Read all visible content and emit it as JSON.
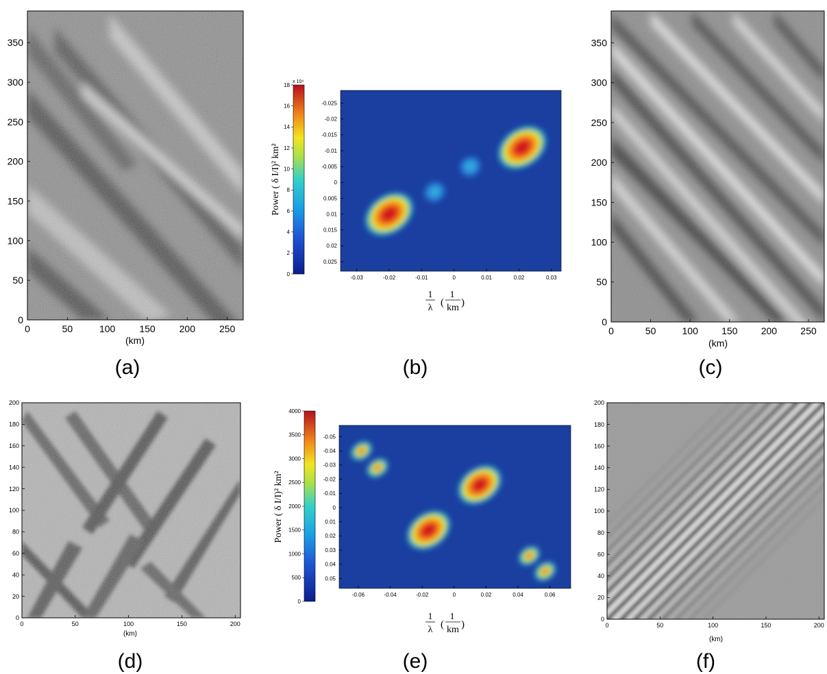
{
  "colors": {
    "heat_background": "#1a3fa0",
    "heat_low": "#2a6fd6",
    "heat_mid": "#33c1d9",
    "heat_yellow": "#f2e51f",
    "heat_orange": "#f28a1a",
    "heat_max": "#c8101c"
  },
  "panels": {
    "a": {
      "label": "(a)",
      "xunit": "(km)"
    },
    "b": {
      "label": "(b)"
    },
    "c": {
      "label": "(c)",
      "xunit": "(km)"
    },
    "d": {
      "label": "(d)",
      "xunit": "(km)"
    },
    "e": {
      "label": "(e)"
    },
    "f": {
      "label": "(f)",
      "xunit": "(km)"
    }
  },
  "spectra": {
    "power_label": "Power",
    "power_units": "( δ I/I)² km²",
    "freq_num": "1",
    "freq_den": "λ",
    "unit_num": "1",
    "unit_den": "km",
    "unit_open": "(",
    "unit_close": ")",
    "b_colorbar_exponent": "x 10⁴"
  },
  "chart_data": [
    {
      "id": "a",
      "type": "heatmap",
      "title": "",
      "xlabel": "(km)",
      "ylabel": "",
      "xlim": [
        0,
        270
      ],
      "ylim": [
        390,
        0
      ],
      "xticks": [
        0,
        50,
        100,
        150,
        200,
        250
      ],
      "yticks": [
        0,
        50,
        100,
        150,
        200,
        250,
        300,
        350
      ],
      "description_values": "grayscale intensity image with diagonal wave bands"
    },
    {
      "id": "b",
      "type": "heatmap",
      "xlabel": "1/λ (1/km)",
      "ylabel": "",
      "xlim": [
        -0.035,
        0.033
      ],
      "ylim": [
        -0.029,
        0.028
      ],
      "xticks": [
        -0.03,
        -0.02,
        -0.01,
        0,
        0.01,
        0.02,
        0.03
      ],
      "yticks": [
        -0.025,
        -0.02,
        -0.015,
        -0.01,
        -0.005,
        0,
        0.005,
        0.01,
        0.015,
        0.02,
        0.025
      ],
      "ytick_labels": [
        "-0.025",
        "-0.02",
        "-0.015",
        "-0.01",
        "-0.005",
        "0",
        "0.005",
        "0.01",
        "0.015",
        "0.02",
        "0.025"
      ],
      "colorbar": {
        "label": "Power ( δ I/I)² km²",
        "range": [
          0,
          18
        ],
        "ticks": [
          0,
          2,
          4,
          6,
          8,
          10,
          12,
          14,
          16,
          18
        ],
        "exponent": "x 10⁴"
      },
      "peaks": [
        {
          "x": -0.02,
          "y": 0.01,
          "value": 18
        },
        {
          "x": 0.021,
          "y": -0.011,
          "value": 18
        },
        {
          "x": -0.006,
          "y": 0.003,
          "value": 4
        },
        {
          "x": 0.005,
          "y": -0.005,
          "value": 4
        }
      ]
    },
    {
      "id": "c",
      "type": "heatmap",
      "xlabel": "(km)",
      "ylabel": "",
      "xlim": [
        0,
        270
      ],
      "ylim": [
        390,
        0
      ],
      "xticks": [
        0,
        50,
        100,
        150,
        200,
        250
      ],
      "yticks": [
        0,
        50,
        100,
        150,
        200,
        250,
        300,
        350
      ]
    },
    {
      "id": "d",
      "type": "heatmap",
      "xlabel": "(km)",
      "ylabel": "",
      "xlim": [
        0,
        205
      ],
      "ylim": [
        200,
        0
      ],
      "xticks": [
        0,
        50,
        100,
        150,
        200
      ],
      "yticks": [
        0,
        20,
        40,
        60,
        80,
        100,
        120,
        140,
        160,
        180,
        200
      ]
    },
    {
      "id": "e",
      "type": "heatmap",
      "xlabel": "1/λ (1/km)",
      "ylabel": "",
      "xlim": [
        -0.072,
        0.073
      ],
      "ylim": [
        -0.058,
        0.057
      ],
      "xticks": [
        -0.06,
        -0.04,
        -0.02,
        0,
        0.02,
        0.04,
        0.06
      ],
      "yticks": [
        -0.05,
        -0.04,
        -0.03,
        -0.02,
        -0.01,
        0,
        0.01,
        0.02,
        0.03,
        0.04,
        0.05
      ],
      "ytick_labels": [
        "-0.05",
        "-0.04",
        "-0.03",
        "-0.02",
        "-0.01",
        "0",
        "0.01",
        "0.02",
        "0.03",
        "0.04",
        "0.05"
      ],
      "colorbar": {
        "label": "Power ( δ I/I)² km²",
        "range": [
          0,
          4000
        ],
        "ticks": [
          0,
          500,
          1000,
          1500,
          2000,
          2500,
          3000,
          3500,
          4000
        ]
      },
      "peaks": [
        {
          "x": -0.016,
          "y": 0.016,
          "value": 4000
        },
        {
          "x": 0.016,
          "y": -0.016,
          "value": 4000
        },
        {
          "x": -0.058,
          "y": -0.04,
          "value": 2800
        },
        {
          "x": -0.048,
          "y": -0.028,
          "value": 3300
        },
        {
          "x": 0.047,
          "y": 0.034,
          "value": 3300
        },
        {
          "x": 0.057,
          "y": 0.045,
          "value": 2800
        }
      ]
    },
    {
      "id": "f",
      "type": "heatmap",
      "xlabel": "(km)",
      "ylabel": "",
      "xlim": [
        0,
        205
      ],
      "ylim": [
        200,
        0
      ],
      "xticks": [
        0,
        50,
        100,
        150,
        200
      ],
      "yticks": [
        0,
        20,
        40,
        60,
        80,
        100,
        120,
        140,
        160,
        180,
        200
      ]
    }
  ]
}
